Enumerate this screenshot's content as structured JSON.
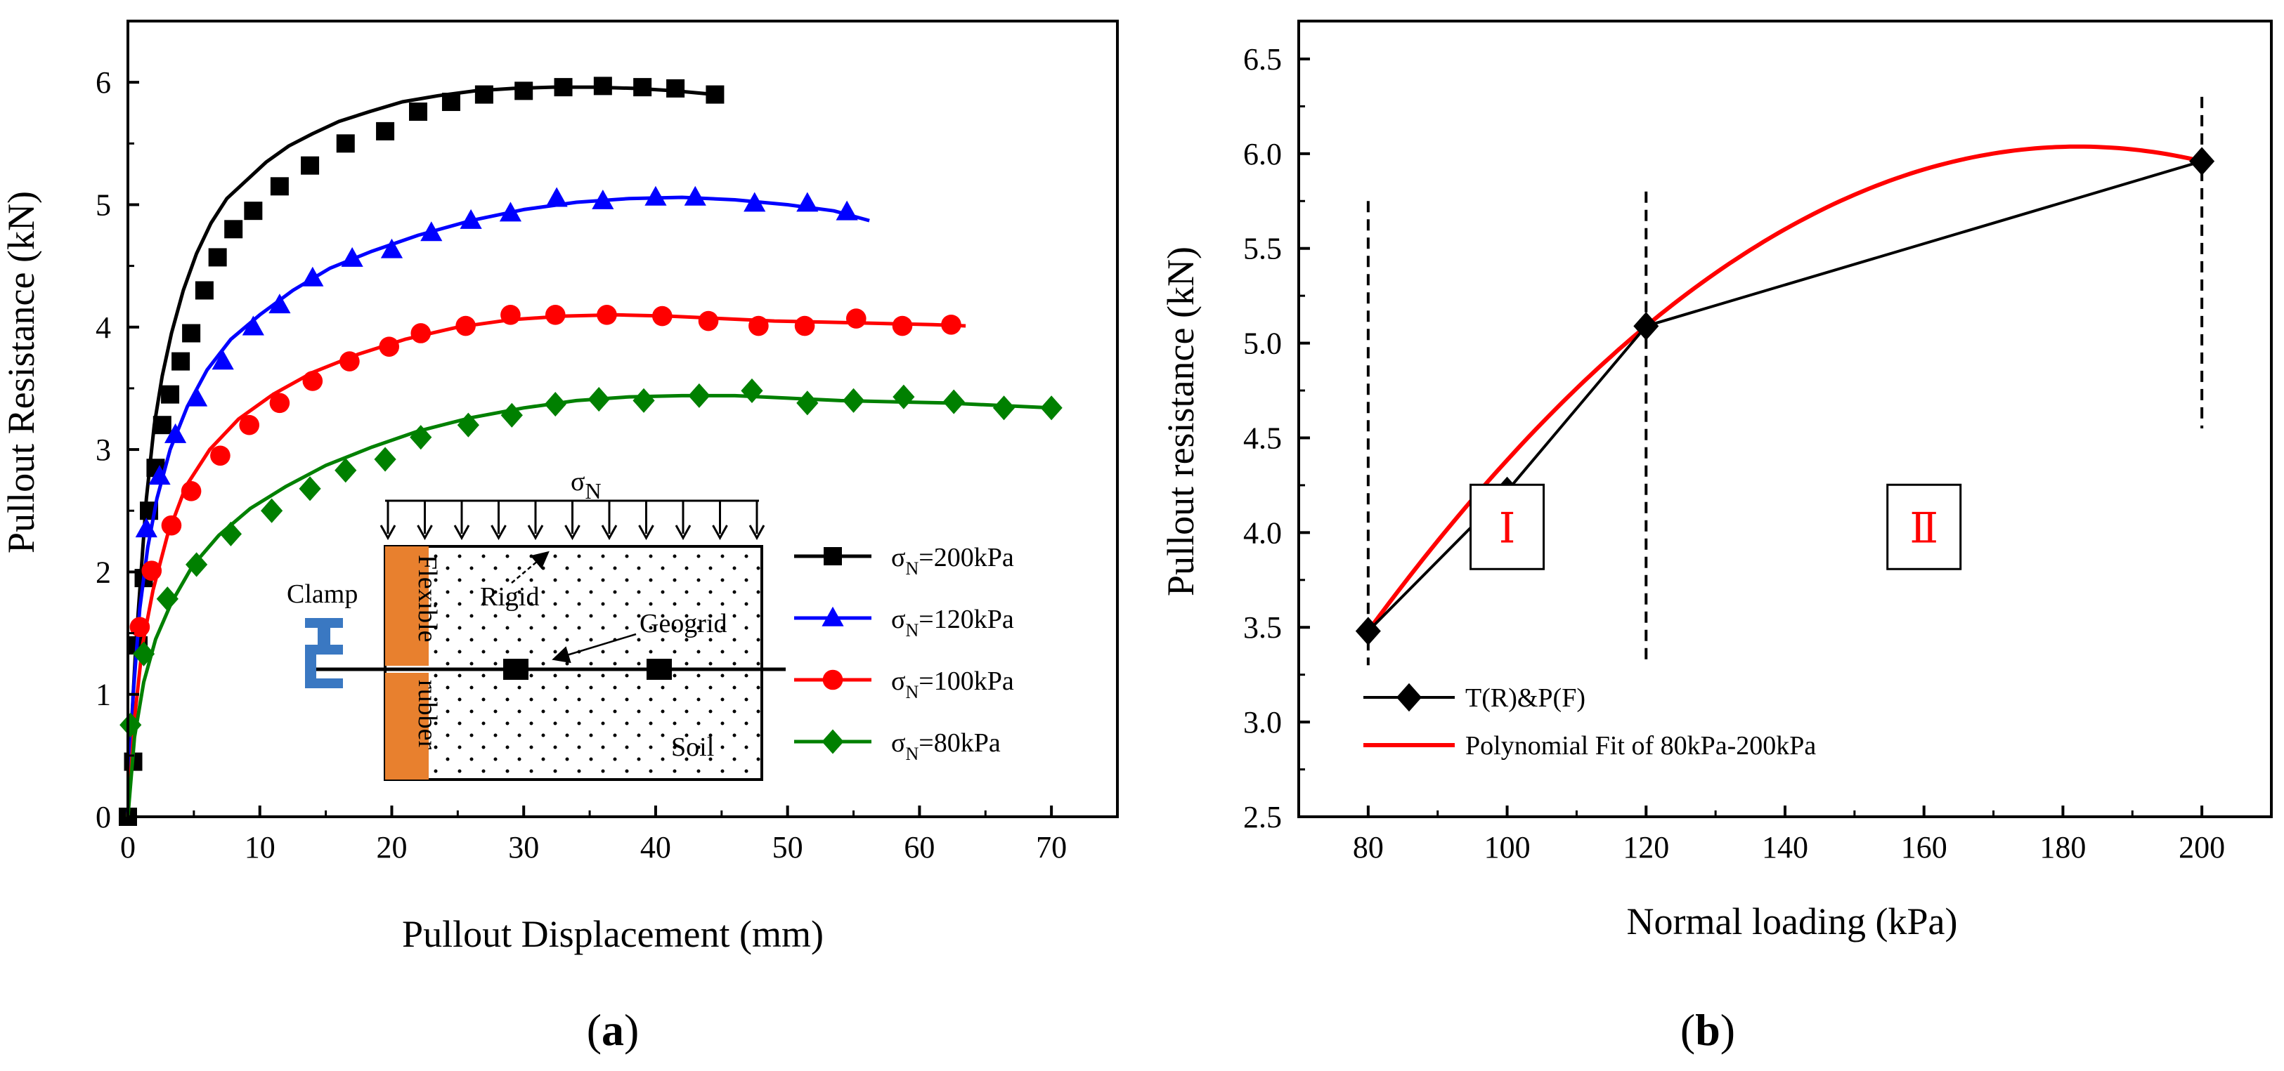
{
  "chart_data": [
    {
      "id": "a",
      "type": "line",
      "panel_label": "a",
      "xlabel": "Pullout Displacement (mm)",
      "ylabel": "Pullout Resistance (kN)",
      "xlim": [
        0,
        75
      ],
      "ylim": [
        0,
        6.5
      ],
      "xticks": [
        0,
        10,
        20,
        30,
        40,
        50,
        60,
        70
      ],
      "yticks": [
        0,
        1,
        2,
        3,
        4,
        5,
        6
      ],
      "legend_position": "lower-right",
      "series": [
        {
          "name": "σN=200kPa",
          "sym": "σ",
          "sub": "N",
          "rest": "=200kPa",
          "color": "#000000",
          "marker": "square",
          "x": [
            0,
            0.3,
            0.6,
            1.0,
            1.4,
            2.0,
            2.6,
            3.3,
            4.2,
            5.2,
            6.3,
            7.5,
            9.0,
            10.5,
            12.2,
            14.0,
            16.0,
            18.3,
            20.8,
            23.5,
            26.3,
            29.2,
            32.2,
            35.3,
            38.5,
            41.5,
            44.5
          ],
          "y": [
            0,
            0.8,
            1.4,
            2.0,
            2.6,
            3.2,
            3.6,
            3.95,
            4.3,
            4.6,
            4.85,
            5.05,
            5.2,
            5.35,
            5.48,
            5.58,
            5.68,
            5.76,
            5.84,
            5.89,
            5.93,
            5.95,
            5.96,
            5.96,
            5.95,
            5.93,
            5.9
          ],
          "marker_x": [
            0,
            0.4,
            0.8,
            1.2,
            1.6,
            2.1,
            2.6,
            3.2,
            4.0,
            4.8,
            5.8,
            6.8,
            8.0,
            9.5,
            11.5,
            13.8,
            16.5,
            19.5,
            22.0,
            24.5,
            27.0,
            30.0,
            33.0,
            36.0,
            39.0,
            41.5,
            44.5
          ],
          "marker_y": [
            0,
            0.45,
            1.4,
            1.95,
            2.5,
            2.85,
            3.2,
            3.45,
            3.72,
            3.95,
            4.3,
            4.57,
            4.8,
            4.95,
            5.15,
            5.32,
            5.5,
            5.6,
            5.76,
            5.84,
            5.9,
            5.93,
            5.96,
            5.97,
            5.96,
            5.95,
            5.9
          ]
        },
        {
          "name": "σN=120kPa",
          "sym": "σ",
          "sub": "N",
          "rest": "=120kPa",
          "color": "#0000ff",
          "marker": "triangle",
          "x": [
            0,
            0.4,
            0.9,
            1.5,
            2.2,
            3.2,
            4.5,
            6.0,
            7.8,
            10.0,
            12.5,
            15.3,
            18.5,
            22.0,
            26.0,
            30.0,
            34.0,
            38.0,
            42.0,
            46.0,
            50.0,
            53.5,
            56.2
          ],
          "y": [
            0,
            1.0,
            1.7,
            2.2,
            2.6,
            3.0,
            3.35,
            3.65,
            3.9,
            4.1,
            4.3,
            4.48,
            4.62,
            4.75,
            4.87,
            4.96,
            5.02,
            5.05,
            5.06,
            5.04,
            5.0,
            4.95,
            4.87
          ],
          "marker_x": [
            1.4,
            2.4,
            3.6,
            5.2,
            7.2,
            9.5,
            11.5,
            14.0,
            17.0,
            20.0,
            23.0,
            26.0,
            29.0,
            32.5,
            36.0,
            40.0,
            43.0,
            47.5,
            51.5,
            54.5
          ],
          "marker_y": [
            2.35,
            2.78,
            3.12,
            3.42,
            3.72,
            4.0,
            4.18,
            4.4,
            4.56,
            4.63,
            4.77,
            4.87,
            4.93,
            5.05,
            5.03,
            5.06,
            5.06,
            5.01,
            5.01,
            4.94
          ]
        },
        {
          "name": "σN=100kPa",
          "sym": "σ",
          "sub": "N",
          "rest": "=100kPa",
          "color": "#ff0000",
          "marker": "circle",
          "x": [
            0,
            0.5,
            1.1,
            1.9,
            3.0,
            4.4,
            6.2,
            8.4,
            11.0,
            14.0,
            17.5,
            21.0,
            25.0,
            29.0,
            33.0,
            37.0,
            41.0,
            45.0,
            49.0,
            53.0,
            57.0,
            61.0,
            63.5
          ],
          "y": [
            0,
            0.8,
            1.4,
            1.85,
            2.3,
            2.7,
            3.0,
            3.25,
            3.45,
            3.63,
            3.78,
            3.9,
            4.0,
            4.06,
            4.09,
            4.1,
            4.09,
            4.07,
            4.05,
            4.04,
            4.03,
            4.02,
            4.01
          ],
          "marker_x": [
            0.9,
            1.8,
            3.3,
            4.8,
            7.0,
            9.2,
            11.5,
            14.0,
            16.8,
            19.8,
            22.2,
            25.6,
            29.0,
            32.4,
            36.3,
            40.5,
            44.0,
            47.8,
            51.3,
            55.2,
            58.7,
            62.4
          ],
          "marker_y": [
            1.55,
            2.01,
            2.38,
            2.66,
            2.95,
            3.2,
            3.38,
            3.56,
            3.72,
            3.84,
            3.95,
            4.01,
            4.1,
            4.1,
            4.1,
            4.09,
            4.05,
            4.01,
            4.01,
            4.07,
            4.01,
            4.02
          ]
        },
        {
          "name": "σN=80kPa",
          "sym": "σ",
          "sub": "N",
          "rest": "=80kPa",
          "color": "#008000",
          "marker": "diamond",
          "x": [
            0,
            0.5,
            1.2,
            2.1,
            3.3,
            4.9,
            6.9,
            9.3,
            12.0,
            15.0,
            18.5,
            22.0,
            26.0,
            30.0,
            34.0,
            38.0,
            42.0,
            46.0,
            50.0,
            54.0,
            58.0,
            62.0,
            66.0,
            70.0
          ],
          "y": [
            0,
            0.65,
            1.1,
            1.45,
            1.75,
            2.05,
            2.3,
            2.52,
            2.7,
            2.87,
            3.02,
            3.15,
            3.26,
            3.34,
            3.4,
            3.43,
            3.44,
            3.44,
            3.42,
            3.4,
            3.39,
            3.38,
            3.36,
            3.34
          ],
          "marker_x": [
            0.2,
            1.2,
            3.0,
            5.2,
            7.8,
            10.9,
            13.8,
            16.5,
            19.5,
            22.2,
            25.8,
            29.1,
            32.4,
            35.7,
            39.1,
            43.3,
            47.3,
            51.5,
            55.0,
            58.8,
            62.6,
            66.4,
            70.0
          ],
          "marker_y": [
            0.75,
            1.33,
            1.78,
            2.06,
            2.31,
            2.5,
            2.68,
            2.83,
            2.92,
            3.1,
            3.2,
            3.28,
            3.37,
            3.41,
            3.4,
            3.44,
            3.48,
            3.38,
            3.4,
            3.43,
            3.39,
            3.34,
            3.34
          ]
        }
      ],
      "inset": {
        "sigma": "σ",
        "sigma_sub": "N",
        "clamp_label": "Clamp",
        "rigid_label": "Rigid",
        "geogrid_label": "Geogrid",
        "soil_label": "Soil",
        "flexible_label": "Flexible",
        "rubber_label": "rubber",
        "rubber_color": "#e8802e",
        "clamp_color": "#3a78c2",
        "rigid_color": "#ff0000"
      }
    },
    {
      "id": "b",
      "type": "line",
      "panel_label": "b",
      "xlabel": "Normal loading (kPa)",
      "ylabel": "Pullout resistance (kN)",
      "xlim": [
        70,
        210
      ],
      "ylim": [
        2.5,
        6.7
      ],
      "xticks": [
        80,
        100,
        120,
        140,
        160,
        180,
        200
      ],
      "yticks": [
        2.5,
        3.0,
        3.5,
        4.0,
        4.5,
        5.0,
        5.5,
        6.0,
        6.5
      ],
      "ytick_labels": [
        "2.5",
        "3.0",
        "3.5",
        "4.0",
        "4.5",
        "5.0",
        "5.5",
        "6.0",
        "6.5"
      ],
      "legend_position": "lower-left",
      "series": [
        {
          "name": "T(R)&P(F)",
          "color": "#000000",
          "marker": "diamond",
          "x": [
            80,
            100,
            120,
            200
          ],
          "y": [
            3.48,
            4.22,
            5.09,
            5.96
          ]
        },
        {
          "name": "Polynomial Fit of 80kPa-200kPa",
          "color": "#ff0000",
          "marker": "none",
          "fit": {
            "type": "quadratic",
            "through": [
              [
                80,
                3.48
              ],
              [
                120,
                5.09
              ],
              [
                200,
                5.96
              ]
            ]
          },
          "x_range": [
            80,
            200
          ]
        }
      ],
      "dashed_lines_x": [
        80,
        120,
        200
      ],
      "dashed_lines_ranges": [
        [
          3.3,
          5.75
        ],
        [
          3.3,
          5.8
        ],
        [
          4.55,
          6.3
        ]
      ],
      "regions": [
        {
          "label": "Ⅰ",
          "x": 100,
          "y": 4.03,
          "color": "#ff0000"
        },
        {
          "label": "Ⅱ",
          "x": 160,
          "y": 4.03,
          "color": "#ff0000"
        }
      ]
    }
  ]
}
